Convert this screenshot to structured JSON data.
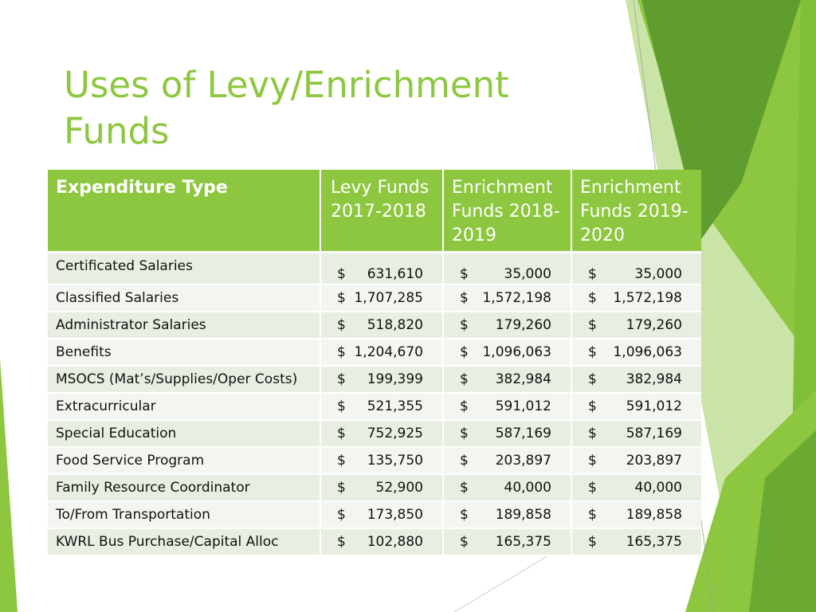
{
  "slide": {
    "title": "Uses of Levy/Enrichment Funds",
    "colors": {
      "accent": "#8dc63f",
      "header_bg": "#8dc63f",
      "row_odd": "#e8efe2",
      "row_even": "#f3f6f0",
      "decor_dark": "#5e9d2e",
      "decor_light": "#b5d98a"
    }
  },
  "table": {
    "headers": [
      "Expenditure Type",
      "Levy Funds 2017-2018",
      "Enrichment Funds 2018-2019",
      "Enrichment Funds 2019-2020"
    ],
    "currency_symbol": "$",
    "rows": [
      {
        "label": "Certificated Salaries",
        "values": [
          "631,610",
          "35,000",
          "35,000"
        ]
      },
      {
        "label": "Classified Salaries",
        "values": [
          "1,707,285",
          "1,572,198",
          "1,572,198"
        ]
      },
      {
        "label": "Administrator Salaries",
        "values": [
          "518,820",
          "179,260",
          "179,260"
        ]
      },
      {
        "label": "Benefits",
        "values": [
          "1,204,670",
          "1,096,063",
          "1,096,063"
        ]
      },
      {
        "label": "MSOCS (Mat’s/Supplies/Oper Costs)",
        "values": [
          "199,399",
          "382,984",
          "382,984"
        ]
      },
      {
        "label": "Extracurricular",
        "values": [
          "521,355",
          "591,012",
          "591,012"
        ]
      },
      {
        "label": "Special Education",
        "values": [
          "752,925",
          "587,169",
          "587,169"
        ]
      },
      {
        "label": "Food Service Program",
        "values": [
          "135,750",
          "203,897",
          "203,897"
        ]
      },
      {
        "label": "Family Resource Coordinator",
        "values": [
          "52,900",
          "40,000",
          "40,000"
        ]
      },
      {
        "label": "To/From Transportation",
        "values": [
          "173,850",
          "189,858",
          "189,858"
        ]
      },
      {
        "label": "KWRL Bus Purchase/Capital Alloc",
        "values": [
          "102,880",
          "165,375",
          "165,375"
        ]
      }
    ]
  }
}
